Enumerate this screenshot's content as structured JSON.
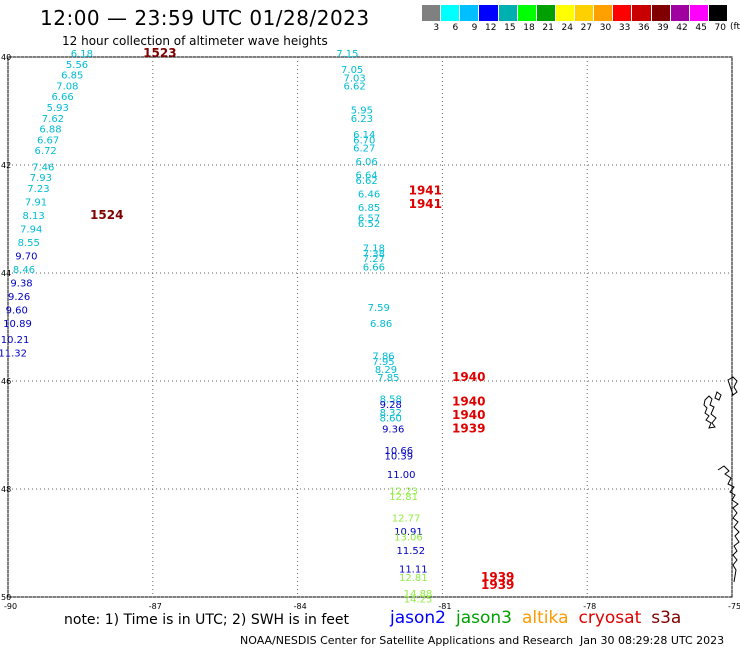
{
  "header": {
    "title": "12:00 — 23:59 UTC 01/28/2023",
    "subtitle": "12 hour collection of altimeter wave heights"
  },
  "scale": {
    "labels": [
      "3",
      "6",
      "9",
      "12",
      "15",
      "18",
      "21",
      "24",
      "27",
      "30",
      "33",
      "36",
      "39",
      "42",
      "45",
      "70"
    ],
    "colors": [
      "#808080",
      "#00ffff",
      "#00bfff",
      "#0000ff",
      "#00b0b0",
      "#00ff00",
      "#00a000",
      "#ffff00",
      "#ffd000",
      "#ffa000",
      "#ff0000",
      "#c80000",
      "#800000",
      "#a000a0",
      "#ff00ff",
      "#000000"
    ],
    "units": "(ft)"
  },
  "axes": {
    "lat_labels": [
      "40",
      "42",
      "44",
      "46",
      "48",
      "50"
    ],
    "lat_values": [
      40,
      42,
      44,
      46,
      48,
      50
    ],
    "lon_labels": [
      "-90",
      "-87",
      "-84",
      "-81",
      "-78",
      "-75"
    ],
    "lon_values": [
      -90,
      -87,
      -84,
      -81,
      -78,
      -75
    ]
  },
  "tracks": [
    {
      "color": "#00bcd4",
      "times": [
        {
          "label": "1523",
          "lon": -87.2,
          "lat": 40.0,
          "color": "#800000"
        },
        {
          "label": "1524",
          "lon": -88.3,
          "lat": 43.0,
          "color": "#800000"
        }
      ],
      "obs": [
        {
          "v": "6.18",
          "lon": -88.7,
          "lat": 40.0,
          "c": "#00bcd4"
        },
        {
          "v": "5.56",
          "lon": -88.8,
          "lat": 40.2,
          "c": "#00bcd4"
        },
        {
          "v": "6.85",
          "lon": -88.9,
          "lat": 40.4,
          "c": "#00bcd4"
        },
        {
          "v": "7.08",
          "lon": -89.0,
          "lat": 40.6,
          "c": "#00bcd4"
        },
        {
          "v": "6.66",
          "lon": -89.1,
          "lat": 40.8,
          "c": "#00bcd4"
        },
        {
          "v": "5.93",
          "lon": -89.2,
          "lat": 41.0,
          "c": "#00bcd4"
        },
        {
          "v": "7.62",
          "lon": -89.3,
          "lat": 41.2,
          "c": "#00bcd4"
        },
        {
          "v": "6.88",
          "lon": -89.35,
          "lat": 41.4,
          "c": "#00bcd4"
        },
        {
          "v": "6.67",
          "lon": -89.4,
          "lat": 41.6,
          "c": "#00bcd4"
        },
        {
          "v": "6.72",
          "lon": -89.45,
          "lat": 41.8,
          "c": "#00bcd4"
        },
        {
          "v": "7.46",
          "lon": -89.5,
          "lat": 42.1,
          "c": "#00bcd4"
        },
        {
          "v": "7.93",
          "lon": -89.55,
          "lat": 42.3,
          "c": "#00bcd4"
        },
        {
          "v": "7.23",
          "lon": -89.6,
          "lat": 42.5,
          "c": "#00bcd4"
        },
        {
          "v": "7.91",
          "lon": -89.65,
          "lat": 42.75,
          "c": "#00bcd4"
        },
        {
          "v": "8.13",
          "lon": -89.7,
          "lat": 43.0,
          "c": "#00bcd4"
        },
        {
          "v": "7.94",
          "lon": -89.75,
          "lat": 43.25,
          "c": "#00bcd4"
        },
        {
          "v": "8.55",
          "lon": -89.8,
          "lat": 43.5,
          "c": "#00bcd4"
        },
        {
          "v": "9.70",
          "lon": -89.85,
          "lat": 43.75,
          "c": "#0000c0"
        },
        {
          "v": "8.46",
          "lon": -89.9,
          "lat": 44.0,
          "c": "#00bcd4"
        },
        {
          "v": "9.38",
          "lon": -89.95,
          "lat": 44.25,
          "c": "#0000c0"
        },
        {
          "v": "9.26",
          "lon": -90.0,
          "lat": 44.5,
          "c": "#0000c0"
        },
        {
          "v": "9.60",
          "lon": -90.05,
          "lat": 44.75,
          "c": "#0000c0"
        },
        {
          "v": "10.89",
          "lon": -90.1,
          "lat": 45.0,
          "c": "#0000c0"
        },
        {
          "v": "10.21",
          "lon": -90.15,
          "lat": 45.3,
          "c": "#0000c0"
        },
        {
          "v": "11.32",
          "lon": -90.2,
          "lat": 45.55,
          "c": "#0000c0"
        }
      ]
    },
    {
      "color": "#00bcd4",
      "times": [
        {
          "label": "1941",
          "lon": -81.7,
          "lat": 42.55,
          "color": "#e00000"
        },
        {
          "label": "1941",
          "lon": -81.7,
          "lat": 42.8,
          "color": "#e00000"
        },
        {
          "label": "1940",
          "lon": -80.8,
          "lat": 46.0,
          "color": "#e00000"
        },
        {
          "label": "1940",
          "lon": -80.8,
          "lat": 46.45,
          "color": "#e00000"
        },
        {
          "label": "1940",
          "lon": -80.8,
          "lat": 46.7,
          "color": "#e00000"
        },
        {
          "label": "1939",
          "lon": -80.8,
          "lat": 46.95,
          "color": "#e00000"
        },
        {
          "label": "1939",
          "lon": -80.2,
          "lat": 49.7,
          "color": "#e00000"
        },
        {
          "label": "1939",
          "lon": -80.2,
          "lat": 49.85,
          "color": "#e00000"
        }
      ],
      "obs": [
        {
          "v": "7.15",
          "lon": -83.2,
          "lat": 40.0,
          "c": "#00bcd4"
        },
        {
          "v": "7.05",
          "lon": -83.1,
          "lat": 40.3,
          "c": "#00bcd4"
        },
        {
          "v": "7.03",
          "lon": -83.05,
          "lat": 40.45,
          "c": "#00bcd4"
        },
        {
          "v": "6.62",
          "lon": -83.05,
          "lat": 40.6,
          "c": "#00bcd4"
        },
        {
          "v": "5.95",
          "lon": -82.9,
          "lat": 41.05,
          "c": "#00bcd4"
        },
        {
          "v": "6.23",
          "lon": -82.9,
          "lat": 41.2,
          "c": "#00bcd4"
        },
        {
          "v": "6.14",
          "lon": -82.85,
          "lat": 41.5,
          "c": "#00bcd4"
        },
        {
          "v": "6.70",
          "lon": -82.85,
          "lat": 41.6,
          "c": "#00bcd4"
        },
        {
          "v": "6.27",
          "lon": -82.85,
          "lat": 41.75,
          "c": "#00bcd4"
        },
        {
          "v": "6.06",
          "lon": -82.8,
          "lat": 42.0,
          "c": "#00bcd4"
        },
        {
          "v": "6.64",
          "lon": -82.8,
          "lat": 42.25,
          "c": "#00bcd4"
        },
        {
          "v": "6.62",
          "lon": -82.8,
          "lat": 42.35,
          "c": "#00bcd4"
        },
        {
          "v": "6.46",
          "lon": -82.75,
          "lat": 42.6,
          "c": "#00bcd4"
        },
        {
          "v": "6.85",
          "lon": -82.75,
          "lat": 42.85,
          "c": "#00bcd4"
        },
        {
          "v": "6.57",
          "lon": -82.75,
          "lat": 43.05,
          "c": "#00bcd4"
        },
        {
          "v": "6.52",
          "lon": -82.75,
          "lat": 43.15,
          "c": "#00bcd4"
        },
        {
          "v": "7.18",
          "lon": -82.65,
          "lat": 43.6,
          "c": "#00bcd4"
        },
        {
          "v": "7.38",
          "lon": -82.65,
          "lat": 43.7,
          "c": "#00bcd4"
        },
        {
          "v": "7.27",
          "lon": -82.65,
          "lat": 43.8,
          "c": "#00bcd4"
        },
        {
          "v": "6.66",
          "lon": -82.65,
          "lat": 43.95,
          "c": "#00bcd4"
        },
        {
          "v": "7.59",
          "lon": -82.55,
          "lat": 44.7,
          "c": "#00bcd4"
        },
        {
          "v": "6.86",
          "lon": -82.5,
          "lat": 45.0,
          "c": "#00bcd4"
        },
        {
          "v": "7.86",
          "lon": -82.45,
          "lat": 45.6,
          "c": "#00bcd4"
        },
        {
          "v": "7.95",
          "lon": -82.45,
          "lat": 45.7,
          "c": "#00bcd4"
        },
        {
          "v": "8.29",
          "lon": -82.4,
          "lat": 45.85,
          "c": "#00bcd4"
        },
        {
          "v": "7.85",
          "lon": -82.35,
          "lat": 46.0,
          "c": "#00bcd4"
        },
        {
          "v": "8.58",
          "lon": -82.3,
          "lat": 46.4,
          "c": "#00bcd4"
        },
        {
          "v": "9.28",
          "lon": -82.3,
          "lat": 46.5,
          "c": "#0000c0"
        },
        {
          "v": "8.32",
          "lon": -82.3,
          "lat": 46.65,
          "c": "#00bcd4"
        },
        {
          "v": "8.60",
          "lon": -82.3,
          "lat": 46.75,
          "c": "#00bcd4"
        },
        {
          "v": "9.36",
          "lon": -82.25,
          "lat": 46.95,
          "c": "#0000c0"
        },
        {
          "v": "10.66",
          "lon": -82.2,
          "lat": 47.35,
          "c": "#0000c0"
        },
        {
          "v": "10.39",
          "lon": -82.2,
          "lat": 47.45,
          "c": "#0000c0"
        },
        {
          "v": "11.00",
          "lon": -82.15,
          "lat": 47.8,
          "c": "#0000c0"
        },
        {
          "v": "12.23",
          "lon": -82.1,
          "lat": 48.1,
          "c": "#90ee40"
        },
        {
          "v": "12.81",
          "lon": -82.1,
          "lat": 48.2,
          "c": "#90ee40"
        },
        {
          "v": "12.77",
          "lon": -82.05,
          "lat": 48.6,
          "c": "#90ee40"
        },
        {
          "v": "10.91",
          "lon": -82.0,
          "lat": 48.85,
          "c": "#0000c0"
        },
        {
          "v": "13.06",
          "lon": -82.0,
          "lat": 48.95,
          "c": "#90ee40"
        },
        {
          "v": "11.52",
          "lon": -81.95,
          "lat": 49.2,
          "c": "#0000c0"
        },
        {
          "v": "11.11",
          "lon": -81.9,
          "lat": 49.55,
          "c": "#0000c0"
        },
        {
          "v": "12.81",
          "lon": -81.9,
          "lat": 49.7,
          "c": "#90ee40"
        },
        {
          "v": "14.88",
          "lon": -81.8,
          "lat": 50.0,
          "c": "#90ee40"
        },
        {
          "v": "14.25",
          "lon": -81.8,
          "lat": 50.1,
          "c": "#90ee40"
        }
      ]
    }
  ],
  "footer": {
    "note": "note:  1) Time is in UTC; 2) SWH is in feet",
    "satellites": [
      {
        "name": "jason2",
        "color": "#0000ff"
      },
      {
        "name": "jason3",
        "color": "#00a000"
      },
      {
        "name": "altika",
        "color": "#ff9900"
      },
      {
        "name": "cryosat",
        "color": "#e00000"
      },
      {
        "name": "s3a",
        "color": "#800000"
      }
    ],
    "credit": "NOAA/NESDIS Center for Satellite Applications and Research",
    "timestamp": "Jan 30 08:29:28 UTC 2023"
  }
}
